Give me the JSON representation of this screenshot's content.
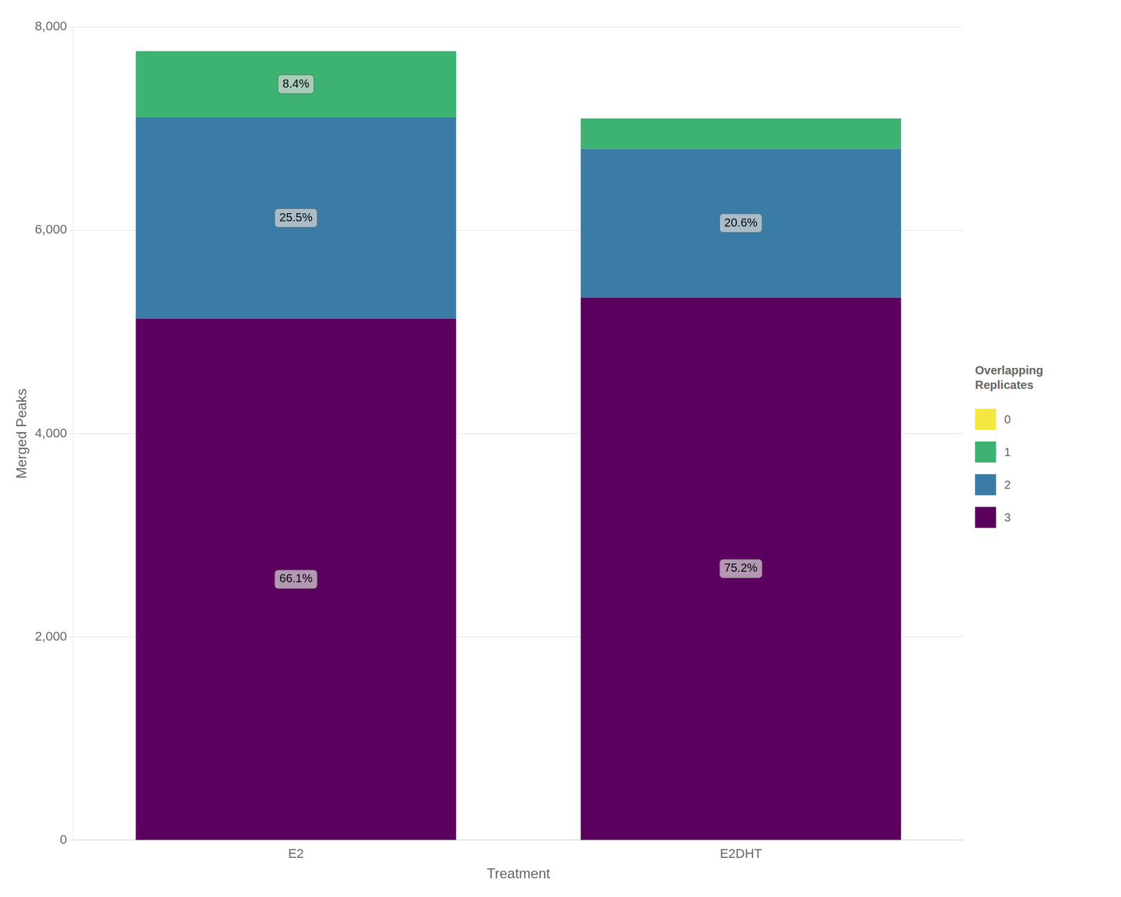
{
  "chart_data": {
    "type": "bar",
    "stacked": true,
    "categories": [
      "E2",
      "E2DHT"
    ],
    "series": [
      {
        "name": "3",
        "color": "#5c0060",
        "values": [
          5131.343,
          5339.2
        ]
      },
      {
        "name": "2",
        "color": "#3a7ca5",
        "values": [
          1979.565,
          1462.6
        ]
      },
      {
        "name": "1",
        "color": "#3cb371",
        "values": [
          652.092,
          298.2
        ]
      },
      {
        "name": "0",
        "color": "#f5e642",
        "values": [
          0,
          0
        ]
      }
    ],
    "xlabel": "Treatment",
    "ylabel": "Merged Peaks",
    "ylim": [
      0,
      8000
    ],
    "yticks": [
      0,
      {
        "value": 2000,
        "label": "2,000"
      },
      {
        "value": 4000,
        "label": "4,000"
      },
      {
        "value": 6000,
        "label": "6,000"
      },
      {
        "value": 8000,
        "label": "8,000"
      }
    ],
    "grid": true,
    "legend": "right",
    "legend_title": "Overlapping\nReplicates",
    "annotations": [
      {
        "series": "3",
        "category": "E2",
        "text": "66.1%"
      },
      {
        "series": "2",
        "category": "E2",
        "text": "25.5%"
      },
      {
        "series": "1",
        "category": "E2",
        "text": "8.4%"
      },
      {
        "series": "3",
        "category": "E2DHT",
        "text": "75.2%"
      },
      {
        "series": "2",
        "category": "E2DHT",
        "text": "20.6%"
      }
    ]
  }
}
